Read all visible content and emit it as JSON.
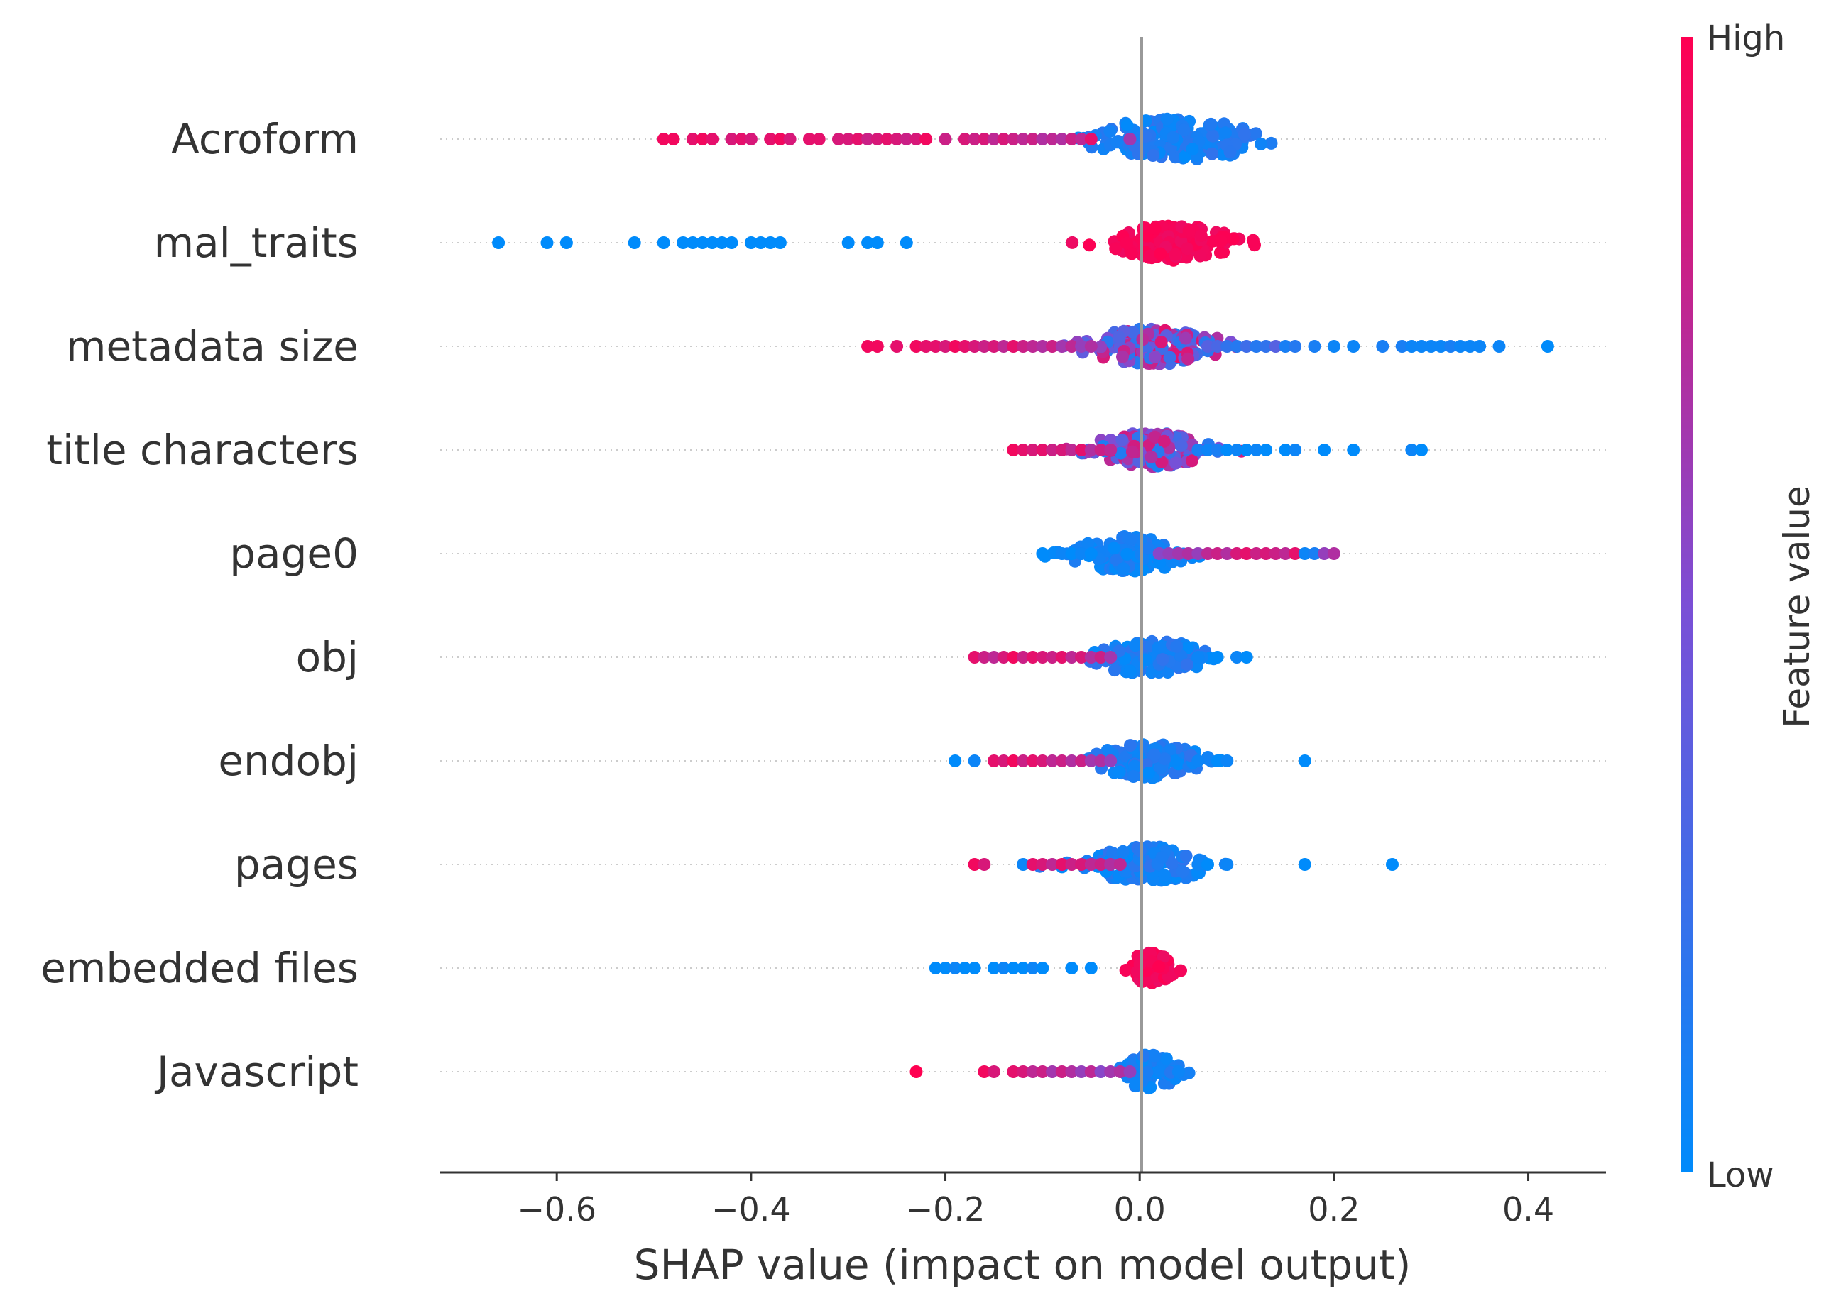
{
  "chart_data": {
    "type": "scatter",
    "subtype": "shap-beeswarm",
    "title": "",
    "xlabel": "SHAP value (impact on model output)",
    "ylabel": "",
    "xlim": [
      -0.72,
      0.48
    ],
    "xticks": [
      -0.6,
      -0.4,
      -0.2,
      0.0,
      0.2,
      0.4
    ],
    "xtick_labels": [
      "−0.6",
      "−0.4",
      "−0.2",
      "0.0",
      "0.2",
      "0.4"
    ],
    "colorbar": {
      "title": "Feature value",
      "high_label": "High",
      "low_label": "Low",
      "high_color": "#ff0d57",
      "low_color": "#1e88e5"
    },
    "zero_line_color": "#999999",
    "features": [
      {
        "name": "Acroform",
        "points": [
          [
            -0.49,
            0.95
          ],
          [
            -0.48,
            0.95
          ],
          [
            -0.46,
            0.9
          ],
          [
            -0.45,
            0.95
          ],
          [
            -0.44,
            0.9
          ],
          [
            -0.42,
            0.85
          ],
          [
            -0.41,
            0.9
          ],
          [
            -0.4,
            0.85
          ],
          [
            -0.38,
            0.9
          ],
          [
            -0.37,
            0.95
          ],
          [
            -0.36,
            0.85
          ],
          [
            -0.34,
            0.9
          ],
          [
            -0.33,
            0.9
          ],
          [
            -0.31,
            0.85
          ],
          [
            -0.3,
            0.85
          ],
          [
            -0.29,
            0.9
          ],
          [
            -0.28,
            0.8
          ],
          [
            -0.27,
            0.85
          ],
          [
            -0.26,
            0.9
          ],
          [
            -0.25,
            0.85
          ],
          [
            -0.24,
            0.8
          ],
          [
            -0.23,
            0.85
          ],
          [
            -0.22,
            0.95
          ],
          [
            -0.2,
            0.8
          ],
          [
            -0.18,
            0.85
          ],
          [
            -0.17,
            0.8
          ],
          [
            -0.16,
            0.85
          ],
          [
            -0.15,
            0.75
          ],
          [
            -0.14,
            0.85
          ],
          [
            -0.13,
            0.8
          ],
          [
            -0.12,
            0.75
          ],
          [
            -0.11,
            0.8
          ],
          [
            -0.1,
            0.7
          ],
          [
            -0.09,
            0.75
          ],
          [
            -0.08,
            0.7
          ],
          [
            -0.07,
            0.8
          ],
          [
            -0.06,
            0.75
          ],
          [
            -0.05,
            0.9
          ],
          [
            -0.01,
            0.65
          ]
        ],
        "cluster": {
          "center": 0.04,
          "spread": 0.045,
          "half_width": 0.58,
          "count": 160,
          "color_low": 0.0,
          "color_high": 0.2
        }
      },
      {
        "name": "mal_traits",
        "points": [
          [
            -0.66,
            0.0
          ],
          [
            -0.61,
            0.0
          ],
          [
            -0.59,
            0.0
          ],
          [
            -0.52,
            0.0
          ],
          [
            -0.49,
            0.0
          ],
          [
            -0.47,
            0.0
          ],
          [
            -0.46,
            0.0
          ],
          [
            -0.45,
            0.0
          ],
          [
            -0.44,
            0.0
          ],
          [
            -0.43,
            0.0
          ],
          [
            -0.42,
            0.0
          ],
          [
            -0.4,
            0.0
          ],
          [
            -0.39,
            0.0
          ],
          [
            -0.38,
            0.0
          ],
          [
            -0.37,
            0.0
          ],
          [
            -0.3,
            0.0
          ],
          [
            -0.28,
            0.0
          ],
          [
            -0.27,
            0.0
          ],
          [
            -0.24,
            0.0
          ]
        ],
        "cluster": {
          "center": 0.035,
          "spread": 0.03,
          "half_width": 0.5,
          "count": 150,
          "color_low": 0.93,
          "color_high": 1.0
        }
      },
      {
        "name": "metadata size",
        "points": [
          [
            -0.28,
            0.95
          ],
          [
            -0.27,
            0.95
          ],
          [
            -0.25,
            0.9
          ],
          [
            -0.23,
            0.95
          ],
          [
            -0.22,
            0.9
          ],
          [
            -0.21,
            0.9
          ],
          [
            -0.2,
            0.85
          ],
          [
            -0.19,
            0.95
          ],
          [
            -0.18,
            0.9
          ],
          [
            -0.17,
            0.85
          ],
          [
            -0.16,
            0.8
          ],
          [
            -0.15,
            0.85
          ],
          [
            -0.14,
            0.75
          ],
          [
            -0.13,
            0.9
          ],
          [
            -0.12,
            0.8
          ],
          [
            -0.11,
            0.75
          ],
          [
            -0.1,
            0.7
          ],
          [
            -0.09,
            0.8
          ],
          [
            -0.08,
            0.65
          ],
          [
            -0.07,
            0.75
          ],
          [
            -0.06,
            0.6
          ],
          [
            -0.05,
            0.7
          ],
          [
            0.07,
            0.35
          ],
          [
            0.08,
            0.3
          ],
          [
            0.09,
            0.2
          ],
          [
            0.1,
            0.15
          ],
          [
            0.11,
            0.25
          ],
          [
            0.12,
            0.15
          ],
          [
            0.13,
            0.2
          ],
          [
            0.14,
            0.35
          ],
          [
            0.15,
            0.1
          ],
          [
            0.16,
            0.15
          ],
          [
            0.18,
            0.1
          ],
          [
            0.2,
            0.05
          ],
          [
            0.22,
            0.05
          ],
          [
            0.25,
            0.1
          ],
          [
            0.27,
            0.1
          ],
          [
            0.28,
            0.05
          ],
          [
            0.29,
            0.05
          ],
          [
            0.3,
            0.05
          ],
          [
            0.31,
            0.05
          ],
          [
            0.32,
            0.1
          ],
          [
            0.33,
            0.05
          ],
          [
            0.34,
            0.05
          ],
          [
            0.35,
            0.05
          ],
          [
            0.37,
            0.05
          ],
          [
            0.42,
            0.0
          ]
        ],
        "cluster": {
          "center": 0.015,
          "spread": 0.035,
          "half_width": 0.5,
          "count": 150,
          "color_low": 0.15,
          "color_high": 0.9
        }
      },
      {
        "name": "title characters",
        "points": [
          [
            -0.13,
            0.95
          ],
          [
            -0.12,
            0.9
          ],
          [
            -0.11,
            0.85
          ],
          [
            -0.1,
            0.9
          ],
          [
            -0.09,
            0.8
          ],
          [
            -0.08,
            0.85
          ],
          [
            -0.07,
            0.75
          ],
          [
            -0.06,
            0.9
          ],
          [
            -0.05,
            0.7
          ],
          [
            -0.04,
            0.8
          ],
          [
            -0.03,
            0.75
          ],
          [
            0.06,
            0.1
          ],
          [
            0.07,
            0.05
          ],
          [
            0.08,
            0.1
          ],
          [
            0.09,
            0.0
          ],
          [
            0.1,
            0.05
          ],
          [
            0.11,
            0.0
          ],
          [
            0.12,
            0.05
          ],
          [
            0.13,
            0.0
          ],
          [
            0.15,
            0.0
          ],
          [
            0.16,
            0.05
          ],
          [
            0.19,
            0.0
          ],
          [
            0.22,
            0.0
          ],
          [
            0.28,
            0.05
          ],
          [
            0.29,
            0.0
          ]
        ],
        "cluster": {
          "center": 0.01,
          "spread": 0.03,
          "half_width": 0.48,
          "count": 140,
          "color_low": 0.1,
          "color_high": 0.85
        }
      },
      {
        "name": "page0",
        "points": [
          [
            -0.1,
            0.0
          ],
          [
            -0.08,
            0.05
          ],
          [
            -0.07,
            0.0
          ],
          [
            -0.06,
            0.05
          ],
          [
            -0.05,
            0.0
          ],
          [
            0.02,
            0.55
          ],
          [
            0.03,
            0.6
          ],
          [
            0.04,
            0.65
          ],
          [
            0.05,
            0.7
          ],
          [
            0.06,
            0.6
          ],
          [
            0.07,
            0.75
          ],
          [
            0.08,
            0.8
          ],
          [
            0.09,
            0.7
          ],
          [
            0.1,
            0.85
          ],
          [
            0.11,
            0.9
          ],
          [
            0.12,
            0.8
          ],
          [
            0.13,
            0.85
          ],
          [
            0.14,
            0.8
          ],
          [
            0.15,
            0.75
          ],
          [
            0.16,
            0.9
          ],
          [
            0.17,
            0.05
          ],
          [
            0.18,
            0.1
          ],
          [
            0.19,
            0.6
          ],
          [
            0.2,
            0.7
          ]
        ],
        "cluster": {
          "center": -0.01,
          "spread": 0.03,
          "half_width": 0.5,
          "count": 140,
          "color_low": 0.0,
          "color_high": 0.15
        }
      },
      {
        "name": "obj",
        "points": [
          [
            -0.17,
            0.9
          ],
          [
            -0.16,
            0.8
          ],
          [
            -0.15,
            0.75
          ],
          [
            -0.14,
            0.85
          ],
          [
            -0.13,
            0.95
          ],
          [
            -0.12,
            0.8
          ],
          [
            -0.11,
            0.9
          ],
          [
            -0.1,
            0.85
          ],
          [
            -0.09,
            0.8
          ],
          [
            -0.08,
            0.9
          ],
          [
            -0.07,
            0.75
          ],
          [
            -0.06,
            0.85
          ],
          [
            -0.05,
            0.7
          ],
          [
            -0.04,
            0.8
          ],
          [
            -0.03,
            0.65
          ],
          [
            0.06,
            0.05
          ],
          [
            0.08,
            0.0
          ],
          [
            0.1,
            0.05
          ],
          [
            0.11,
            0.0
          ]
        ],
        "cluster": {
          "center": 0.01,
          "spread": 0.028,
          "half_width": 0.48,
          "count": 120,
          "color_low": 0.0,
          "color_high": 0.2
        }
      },
      {
        "name": "endobj",
        "points": [
          [
            -0.19,
            0.0
          ],
          [
            -0.17,
            0.05
          ],
          [
            -0.15,
            0.9
          ],
          [
            -0.14,
            0.85
          ],
          [
            -0.13,
            0.95
          ],
          [
            -0.12,
            0.8
          ],
          [
            -0.11,
            0.9
          ],
          [
            -0.1,
            0.85
          ],
          [
            -0.09,
            0.75
          ],
          [
            -0.08,
            0.8
          ],
          [
            -0.07,
            0.7
          ],
          [
            -0.06,
            0.8
          ],
          [
            -0.05,
            0.65
          ],
          [
            -0.04,
            0.7
          ],
          [
            -0.03,
            0.6
          ],
          [
            0.06,
            0.05
          ],
          [
            0.08,
            0.0
          ],
          [
            0.09,
            0.05
          ],
          [
            0.17,
            0.0
          ]
        ],
        "cluster": {
          "center": 0.01,
          "spread": 0.028,
          "half_width": 0.48,
          "count": 120,
          "color_low": 0.0,
          "color_high": 0.2
        }
      },
      {
        "name": "pages",
        "points": [
          [
            -0.17,
            0.95
          ],
          [
            -0.16,
            0.85
          ],
          [
            -0.12,
            0.05
          ],
          [
            -0.11,
            0.9
          ],
          [
            -0.1,
            0.85
          ],
          [
            -0.09,
            0.75
          ],
          [
            -0.08,
            0.9
          ],
          [
            -0.07,
            0.8
          ],
          [
            -0.06,
            0.85
          ],
          [
            -0.05,
            0.75
          ],
          [
            -0.04,
            0.8
          ],
          [
            -0.03,
            0.7
          ],
          [
            -0.02,
            0.75
          ],
          [
            0.06,
            0.05
          ],
          [
            0.07,
            0.0
          ],
          [
            0.09,
            0.05
          ],
          [
            0.17,
            0.0
          ],
          [
            0.26,
            0.0
          ]
        ],
        "cluster": {
          "center": 0.01,
          "spread": 0.03,
          "half_width": 0.5,
          "count": 130,
          "color_low": 0.0,
          "color_high": 0.2
        }
      },
      {
        "name": "embedded files",
        "points": [
          [
            -0.21,
            0.0
          ],
          [
            -0.2,
            0.0
          ],
          [
            -0.19,
            0.05
          ],
          [
            -0.18,
            0.0
          ],
          [
            -0.17,
            0.0
          ],
          [
            -0.15,
            0.0
          ],
          [
            -0.14,
            0.05
          ],
          [
            -0.13,
            0.0
          ],
          [
            -0.12,
            0.0
          ],
          [
            -0.11,
            0.05
          ],
          [
            -0.1,
            0.0
          ],
          [
            -0.07,
            0.0
          ],
          [
            -0.05,
            0.0
          ]
        ],
        "cluster": {
          "center": 0.012,
          "spread": 0.011,
          "half_width": 0.45,
          "count": 70,
          "color_low": 0.92,
          "color_high": 1.0
        }
      },
      {
        "name": "Javascript",
        "points": [
          [
            -0.23,
            1.0
          ],
          [
            -0.16,
            0.95
          ],
          [
            -0.15,
            0.85
          ],
          [
            -0.13,
            0.9
          ],
          [
            -0.12,
            0.85
          ],
          [
            -0.11,
            0.75
          ],
          [
            -0.1,
            0.8
          ],
          [
            -0.09,
            0.65
          ],
          [
            -0.08,
            0.8
          ],
          [
            -0.07,
            0.7
          ],
          [
            -0.06,
            0.6
          ],
          [
            -0.05,
            0.75
          ],
          [
            -0.04,
            0.55
          ],
          [
            -0.03,
            0.65
          ],
          [
            -0.02,
            0.7
          ],
          [
            -0.01,
            0.6
          ],
          [
            0.04,
            0.05
          ]
        ],
        "cluster": {
          "center": 0.01,
          "spread": 0.015,
          "half_width": 0.48,
          "count": 80,
          "color_low": 0.0,
          "color_high": 0.15
        }
      }
    ]
  }
}
